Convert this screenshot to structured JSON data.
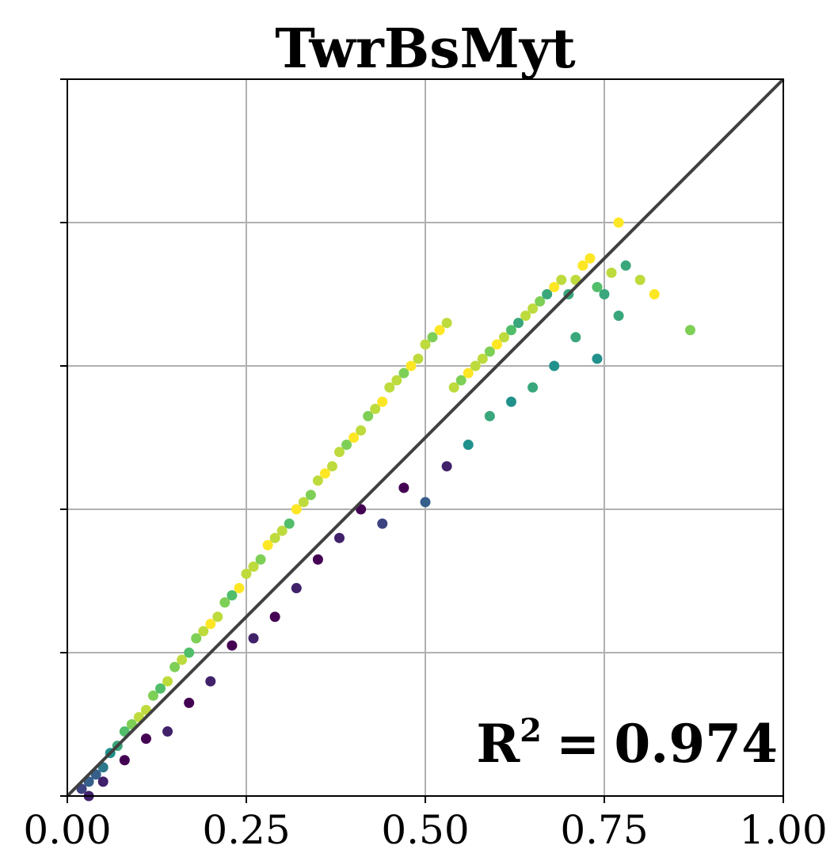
{
  "chart_data": {
    "type": "scatter",
    "title": "TwrBsMyt",
    "xlabel": "",
    "ylabel": "",
    "xlim": [
      0.0,
      1.0
    ],
    "ylim": [
      0.0,
      1.0
    ],
    "x_ticks": [
      0.0,
      0.25,
      0.5,
      0.75,
      1.0
    ],
    "x_tick_labels": [
      "0.00",
      "0.25",
      "0.50",
      "0.75",
      "1.00"
    ],
    "y_ticks": [
      0.0,
      0.2,
      0.4,
      0.6,
      0.8,
      1.0
    ],
    "y_tick_labels": [
      "",
      "",
      "",
      "",
      "",
      ""
    ],
    "grid": true,
    "reference_line": {
      "x": [
        0.0,
        1.0
      ],
      "y": [
        0.0,
        1.0
      ],
      "color": "#404040"
    },
    "colormap": "viridis",
    "annotation": {
      "label": "R",
      "superscript": "2",
      "equals": "=",
      "value": "0.974"
    },
    "series": [
      {
        "x": [
          0.02,
          0.03,
          0.04,
          0.05,
          0.06,
          0.07,
          0.08,
          0.09,
          0.1,
          0.11,
          0.12,
          0.13,
          0.14,
          0.15,
          0.16,
          0.17,
          0.18,
          0.19,
          0.2,
          0.21,
          0.22,
          0.23,
          0.24,
          0.25,
          0.26,
          0.27,
          0.28,
          0.29,
          0.3,
          0.31,
          0.32,
          0.33,
          0.34,
          0.35,
          0.36,
          0.37,
          0.38,
          0.39,
          0.4,
          0.41,
          0.42,
          0.43,
          0.44,
          0.45,
          0.46,
          0.47,
          0.48,
          0.49,
          0.5,
          0.51,
          0.52,
          0.53,
          0.54,
          0.55,
          0.56,
          0.57,
          0.58,
          0.59,
          0.6,
          0.61,
          0.62,
          0.63,
          0.64,
          0.65,
          0.66,
          0.67,
          0.68,
          0.69,
          0.7,
          0.71,
          0.72,
          0.73,
          0.74,
          0.75,
          0.76,
          0.77,
          0.78,
          0.8,
          0.82,
          0.87,
          0.03,
          0.05,
          0.08,
          0.11,
          0.14,
          0.17,
          0.2,
          0.23,
          0.26,
          0.29,
          0.32,
          0.35,
          0.38,
          0.41,
          0.44,
          0.47,
          0.5,
          0.53,
          0.56,
          0.59,
          0.62,
          0.65,
          0.68,
          0.71,
          0.74,
          0.77
        ],
        "y": [
          0.01,
          0.02,
          0.03,
          0.04,
          0.06,
          0.07,
          0.09,
          0.1,
          0.11,
          0.12,
          0.14,
          0.15,
          0.16,
          0.18,
          0.19,
          0.2,
          0.22,
          0.23,
          0.24,
          0.25,
          0.27,
          0.28,
          0.29,
          0.31,
          0.32,
          0.33,
          0.35,
          0.36,
          0.37,
          0.38,
          0.4,
          0.41,
          0.42,
          0.44,
          0.45,
          0.46,
          0.48,
          0.49,
          0.5,
          0.51,
          0.53,
          0.54,
          0.55,
          0.57,
          0.58,
          0.59,
          0.6,
          0.61,
          0.63,
          0.64,
          0.65,
          0.66,
          0.57,
          0.58,
          0.59,
          0.6,
          0.61,
          0.62,
          0.63,
          0.64,
          0.65,
          0.66,
          0.67,
          0.68,
          0.69,
          0.7,
          0.71,
          0.72,
          0.7,
          0.72,
          0.74,
          0.75,
          0.71,
          0.7,
          0.73,
          0.8,
          0.74,
          0.72,
          0.7,
          0.65,
          0.0,
          0.02,
          0.05,
          0.08,
          0.09,
          0.13,
          0.16,
          0.21,
          0.22,
          0.25,
          0.29,
          0.33,
          0.36,
          0.4,
          0.38,
          0.43,
          0.41,
          0.46,
          0.49,
          0.53,
          0.55,
          0.57,
          0.6,
          0.64,
          0.61,
          0.67
        ],
        "c": [
          0.2,
          0.3,
          0.3,
          0.4,
          0.5,
          0.6,
          0.7,
          0.8,
          0.9,
          0.9,
          0.8,
          0.7,
          0.9,
          0.8,
          0.9,
          0.7,
          0.8,
          0.9,
          1.0,
          0.9,
          0.8,
          0.7,
          1.0,
          0.9,
          0.9,
          0.8,
          1.0,
          0.9,
          0.9,
          0.7,
          1.0,
          0.9,
          0.8,
          0.9,
          1.0,
          0.9,
          0.9,
          0.8,
          1.0,
          0.9,
          0.8,
          0.9,
          1.0,
          0.9,
          0.9,
          0.8,
          1.0,
          0.9,
          0.9,
          0.8,
          1.0,
          0.9,
          0.9,
          0.8,
          1.0,
          0.9,
          0.9,
          0.8,
          1.0,
          0.9,
          0.7,
          0.6,
          0.9,
          0.9,
          0.8,
          0.6,
          1.0,
          0.9,
          0.6,
          0.9,
          1.0,
          1.0,
          0.7,
          0.6,
          0.9,
          1.0,
          0.6,
          0.9,
          1.0,
          0.8,
          0.1,
          0.1,
          0.0,
          0.0,
          0.1,
          0.0,
          0.1,
          0.0,
          0.1,
          0.0,
          0.1,
          0.0,
          0.1,
          0.0,
          0.2,
          0.0,
          0.3,
          0.1,
          0.5,
          0.6,
          0.5,
          0.6,
          0.5,
          0.6,
          0.5,
          0.6
        ]
      }
    ]
  }
}
